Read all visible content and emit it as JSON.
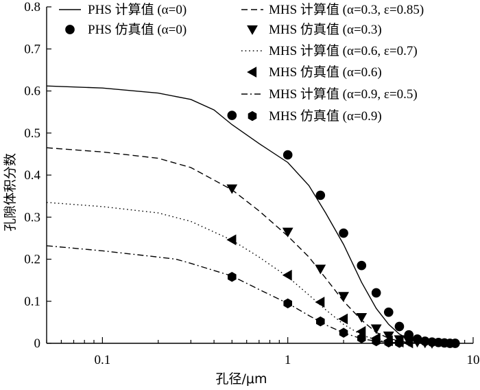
{
  "chart_data": {
    "type": "line",
    "xlabel": "孔径/μm",
    "ylabel": "孔隙体积分数",
    "x_scale": "log",
    "xlim": [
      0.05,
      10
    ],
    "ylim": [
      0,
      0.8
    ],
    "x_ticks": [
      {
        "value": 0.1,
        "label": "0.1"
      },
      {
        "value": 1,
        "label": "1"
      },
      {
        "value": 10,
        "label": "10"
      }
    ],
    "y_ticks": [
      {
        "value": 0,
        "label": "0"
      },
      {
        "value": 0.1,
        "label": "0.1"
      },
      {
        "value": 0.2,
        "label": "0.2"
      },
      {
        "value": 0.3,
        "label": "0.3"
      },
      {
        "value": 0.4,
        "label": "0.4"
      },
      {
        "value": 0.5,
        "label": "0.5"
      },
      {
        "value": 0.6,
        "label": "0.6"
      },
      {
        "value": 0.7,
        "label": "0.7"
      },
      {
        "value": 0.8,
        "label": "0.8"
      }
    ],
    "grid": false,
    "legend_placement": "top, two columns",
    "series": [
      {
        "name": "PHS 计算值 (α=0)",
        "kind": "line",
        "dash": "solid",
        "x": [
          0.05,
          0.1,
          0.2,
          0.3,
          0.4,
          0.5,
          0.7,
          1.0,
          1.3,
          1.6,
          2.0,
          2.5,
          3.0,
          3.5,
          4.0,
          4.5,
          5.0,
          5.5,
          6.0,
          7.0
        ],
        "y": [
          0.612,
          0.607,
          0.595,
          0.58,
          0.555,
          0.52,
          0.475,
          0.43,
          0.375,
          0.31,
          0.235,
          0.145,
          0.083,
          0.045,
          0.022,
          0.01,
          0.004,
          0.002,
          0.001,
          0.0
        ]
      },
      {
        "name": "PHS 仿真值 (α=0)",
        "kind": "marker",
        "marker": "circle",
        "x": [
          0.5,
          1.0,
          1.5,
          2.0,
          2.5,
          3.0,
          3.5,
          4.0,
          4.5,
          5.0,
          5.5,
          6.0,
          6.5,
          7.0,
          7.5,
          8.0
        ],
        "y": [
          0.542,
          0.448,
          0.352,
          0.262,
          0.185,
          0.12,
          0.074,
          0.04,
          0.02,
          0.01,
          0.005,
          0.003,
          0.002,
          0.001,
          0.0,
          0.0
        ]
      },
      {
        "name": "MHS 计算值 (α=0.3, ε=0.85)",
        "kind": "line",
        "dash": "dashed",
        "x": [
          0.05,
          0.1,
          0.2,
          0.3,
          0.5,
          0.7,
          1.0,
          1.3,
          1.6,
          2.0,
          2.5,
          3.0,
          3.5,
          4.0,
          4.5,
          5.0,
          6.0
        ],
        "y": [
          0.465,
          0.455,
          0.44,
          0.418,
          0.365,
          0.315,
          0.255,
          0.205,
          0.155,
          0.1,
          0.055,
          0.026,
          0.012,
          0.005,
          0.002,
          0.001,
          0.0
        ]
      },
      {
        "name": "MHS 仿真值 (α=0.3)",
        "kind": "marker",
        "marker": "triangle-down",
        "x": [
          0.5,
          1.0,
          1.5,
          2.0,
          2.5,
          3.0,
          3.5,
          4.0,
          4.5,
          5.0,
          5.5,
          6.0
        ],
        "y": [
          0.368,
          0.265,
          0.177,
          0.112,
          0.062,
          0.035,
          0.018,
          0.009,
          0.005,
          0.003,
          0.001,
          0.0
        ]
      },
      {
        "name": "MHS 计算值 (α=0.6, ε=0.7)",
        "kind": "line",
        "dash": "dotted",
        "x": [
          0.05,
          0.1,
          0.2,
          0.3,
          0.5,
          0.7,
          1.0,
          1.3,
          1.6,
          2.0,
          2.5,
          3.0,
          3.5,
          4.0,
          5.0
        ],
        "y": [
          0.335,
          0.325,
          0.31,
          0.29,
          0.245,
          0.205,
          0.158,
          0.115,
          0.08,
          0.045,
          0.02,
          0.008,
          0.003,
          0.001,
          0.0
        ]
      },
      {
        "name": "MHS 仿真值 (α=0.6)",
        "kind": "marker",
        "marker": "triangle-left",
        "x": [
          0.5,
          1.0,
          1.5,
          2.0,
          2.5,
          3.0,
          3.5,
          4.0,
          4.5
        ],
        "y": [
          0.246,
          0.162,
          0.098,
          0.058,
          0.028,
          0.012,
          0.006,
          0.003,
          0.001
        ]
      },
      {
        "name": "MHS 计算值 (α=0.9, ε=0.5)",
        "kind": "line",
        "dash": "dashdot",
        "x": [
          0.05,
          0.1,
          0.2,
          0.25,
          0.3,
          0.5,
          0.7,
          1.0,
          1.3,
          1.6,
          2.0,
          2.5,
          3.0,
          3.5,
          4.0,
          5.0
        ],
        "y": [
          0.232,
          0.22,
          0.205,
          0.2,
          0.19,
          0.16,
          0.128,
          0.095,
          0.066,
          0.044,
          0.025,
          0.011,
          0.005,
          0.002,
          0.001,
          0.0
        ]
      },
      {
        "name": "MHS 仿真值 (α=0.9)",
        "kind": "marker",
        "marker": "hexagon",
        "x": [
          0.5,
          1.0,
          1.5,
          2.0,
          2.5,
          3.0,
          3.5,
          4.0
        ],
        "y": [
          0.158,
          0.095,
          0.052,
          0.025,
          0.012,
          0.005,
          0.002,
          0.001
        ]
      }
    ],
    "legend": [
      {
        "series_index": 0,
        "text": "PHS 计算值 (α=0)"
      },
      {
        "series_index": 1,
        "text": "PHS 仿真值 (α=0)"
      },
      {
        "series_index": 2,
        "text": "MHS 计算值 (α=0.3, ε=0.85)"
      },
      {
        "series_index": 3,
        "text": "MHS 仿真值 (α=0.3)"
      },
      {
        "series_index": 4,
        "text": "MHS 计算值 (α=0.6, ε=0.7)"
      },
      {
        "series_index": 5,
        "text": "MHS 仿真值 (α=0.6)"
      },
      {
        "series_index": 6,
        "text": "MHS 计算值 (α=0.9, ε=0.5)"
      },
      {
        "series_index": 7,
        "text": "MHS 仿真值 (α=0.9)"
      }
    ],
    "colors": {
      "ink": "#000000",
      "background": "#ffffff"
    }
  }
}
